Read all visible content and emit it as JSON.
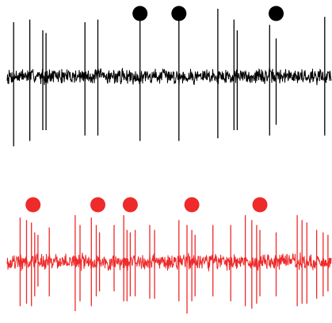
{
  "chart_data": [
    {
      "type": "line",
      "title": "",
      "xlabel": "",
      "ylabel": "",
      "color": "#000000",
      "marker_color": "#000000",
      "baseline": 0,
      "noise_amplitude": 0.12,
      "spikes": [
        {
          "x": 0.02,
          "up": 1.0,
          "down": -1.3
        },
        {
          "x": 0.07,
          "up": 1.05,
          "down": -1.2
        },
        {
          "x": 0.11,
          "up": 0.85,
          "down": -1.0
        },
        {
          "x": 0.12,
          "up": 0.8,
          "down": -1.0
        },
        {
          "x": 0.24,
          "up": 1.0,
          "down": -1.1
        },
        {
          "x": 0.28,
          "up": 1.05,
          "down": -1.1
        },
        {
          "x": 0.41,
          "up": 1.1,
          "down": -1.2
        },
        {
          "x": 0.53,
          "up": 1.1,
          "down": -1.2
        },
        {
          "x": 0.65,
          "up": 1.25,
          "down": -1.15
        },
        {
          "x": 0.7,
          "up": 1.05,
          "down": -1.0
        },
        {
          "x": 0.71,
          "up": 0.85,
          "down": -1.0
        },
        {
          "x": 0.81,
          "up": 0.95,
          "down": -1.1
        },
        {
          "x": 0.83,
          "up": 0.7,
          "down": -0.9
        },
        {
          "x": 0.98,
          "up": 1.1,
          "down": -1.1
        }
      ],
      "markers": [
        0.41,
        0.53,
        0.83
      ]
    },
    {
      "type": "line",
      "title": "",
      "xlabel": "",
      "ylabel": "",
      "color": "#ee2a2a",
      "marker_color": "#ee2a2a",
      "baseline": 0,
      "noise_amplitude": 0.14,
      "spikes": [
        {
          "x": 0.04,
          "up": 0.9,
          "down": -0.9
        },
        {
          "x": 0.06,
          "up": 0.85,
          "down": -0.85
        },
        {
          "x": 0.075,
          "up": 0.8,
          "down": -0.9
        },
        {
          "x": 0.085,
          "up": 0.6,
          "down": -0.7
        },
        {
          "x": 0.095,
          "up": 0.55,
          "down": -0.5
        },
        {
          "x": 0.13,
          "up": 0.7,
          "down": -0.7
        },
        {
          "x": 0.21,
          "up": 0.95,
          "down": -1.0
        },
        {
          "x": 0.225,
          "up": 0.75,
          "down": -0.8
        },
        {
          "x": 0.26,
          "up": 0.9,
          "down": -0.9
        },
        {
          "x": 0.275,
          "up": 0.75,
          "down": -0.7
        },
        {
          "x": 0.285,
          "up": 0.6,
          "down": -0.6
        },
        {
          "x": 0.33,
          "up": 0.75,
          "down": -0.6
        },
        {
          "x": 0.36,
          "up": 0.95,
          "down": -0.8
        },
        {
          "x": 0.37,
          "up": 0.65,
          "down": -0.8
        },
        {
          "x": 0.38,
          "up": 0.6,
          "down": -0.7
        },
        {
          "x": 0.395,
          "up": 0.65,
          "down": -0.7
        },
        {
          "x": 0.44,
          "up": 0.75,
          "down": -0.75
        },
        {
          "x": 0.455,
          "up": 0.65,
          "down": -0.75
        },
        {
          "x": 0.53,
          "up": 0.85,
          "down": -0.8
        },
        {
          "x": 0.555,
          "up": 0.75,
          "down": -1.05
        },
        {
          "x": 0.57,
          "up": 0.65,
          "down": -0.8
        },
        {
          "x": 0.58,
          "up": 0.55,
          "down": -0.7
        },
        {
          "x": 0.635,
          "up": 0.75,
          "down": -0.7
        },
        {
          "x": 0.69,
          "up": 0.75,
          "down": -0.8
        },
        {
          "x": 0.735,
          "up": 0.95,
          "down": -0.9
        },
        {
          "x": 0.755,
          "up": 0.85,
          "down": -0.95
        },
        {
          "x": 0.77,
          "up": 0.75,
          "down": -0.85
        },
        {
          "x": 0.78,
          "up": 0.65,
          "down": -0.7
        },
        {
          "x": 0.83,
          "up": 0.6,
          "down": -0.7
        },
        {
          "x": 0.895,
          "up": 0.95,
          "down": -0.9
        },
        {
          "x": 0.91,
          "up": 0.85,
          "down": -0.85
        },
        {
          "x": 0.925,
          "up": 0.8,
          "down": -0.85
        },
        {
          "x": 0.955,
          "up": 0.65,
          "down": -0.75
        },
        {
          "x": 0.975,
          "up": 0.6,
          "down": -0.7
        },
        {
          "x": 0.99,
          "up": 0.55,
          "down": -0.6
        }
      ],
      "markers": [
        0.08,
        0.28,
        0.38,
        0.57,
        0.78
      ]
    }
  ]
}
